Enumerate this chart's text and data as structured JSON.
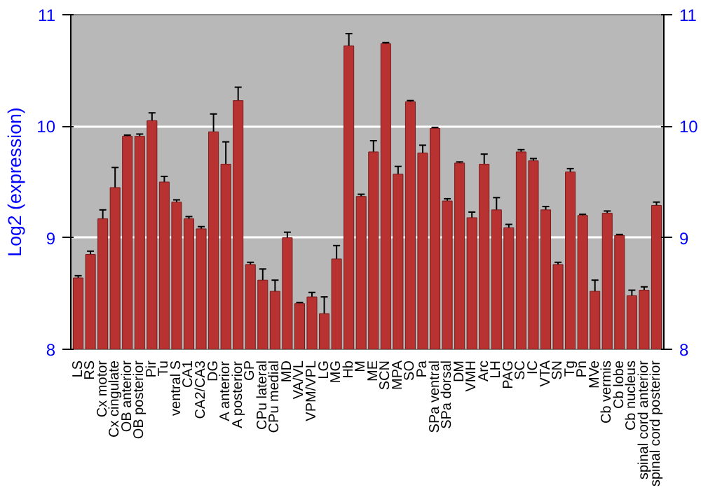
{
  "chart_data": {
    "type": "bar",
    "ylabel": "Log2 (expression)",
    "categories": [
      "LS",
      "RS",
      "Cx motor",
      "Cx cingulate",
      "OB anterior",
      "OB posterior",
      "Pir",
      "Tu",
      "ventral S",
      "CA1",
      "CA2/CA3",
      "DG",
      "A anterior",
      "A posterior",
      "GP",
      "CPu lateral",
      "CPu medial",
      "MD",
      "VA/VL",
      "VPM/VPL",
      "LG",
      "MG",
      "Hb",
      "M",
      "ME",
      "SCN",
      "MPA",
      "SO",
      "Pa",
      "SPa ventral",
      "SPa dorsal",
      "DM",
      "VMH",
      "Arc",
      "LH",
      "PAG",
      "SC",
      "IC",
      "VTA",
      "SN",
      "Tg",
      "Pn",
      "MVe",
      "Cb vermis",
      "Cb lobe",
      "Cb nucleus",
      "spinal cord anterior",
      "spinal cord posterior"
    ],
    "values": [
      8.64,
      8.85,
      9.17,
      9.45,
      9.91,
      9.91,
      10.05,
      9.5,
      9.32,
      9.17,
      9.08,
      9.95,
      9.66,
      10.23,
      8.76,
      8.62,
      8.52,
      9.0,
      8.41,
      8.47,
      8.32,
      8.81,
      10.72,
      9.37,
      9.77,
      10.74,
      9.57,
      10.22,
      9.76,
      9.98,
      9.33,
      9.67,
      9.18,
      9.66,
      9.25,
      9.09,
      9.77,
      9.69,
      9.25,
      8.76,
      9.59,
      9.2,
      8.52,
      9.22,
      9.02,
      8.48,
      8.53,
      9.29
    ],
    "errors": [
      0.02,
      0.03,
      0.08,
      0.18,
      0.01,
      0.02,
      0.07,
      0.05,
      0.02,
      0.02,
      0.02,
      0.16,
      0.2,
      0.12,
      0.02,
      0.1,
      0.1,
      0.05,
      0.01,
      0.04,
      0.15,
      0.12,
      0.11,
      0.02,
      0.1,
      0.01,
      0.07,
      0.01,
      0.07,
      0.01,
      0.02,
      0.01,
      0.05,
      0.09,
      0.11,
      0.03,
      0.02,
      0.02,
      0.03,
      0.02,
      0.03,
      0.01,
      0.1,
      0.02,
      0.01,
      0.05,
      0.03,
      0.03
    ],
    "color": "#b83232",
    "ylim": [
      8,
      11
    ],
    "yticks": [
      8,
      9,
      10,
      11
    ],
    "y2lim": [
      8,
      11
    ],
    "y2ticks": [
      8,
      9,
      10,
      11
    ],
    "grid": "y"
  }
}
